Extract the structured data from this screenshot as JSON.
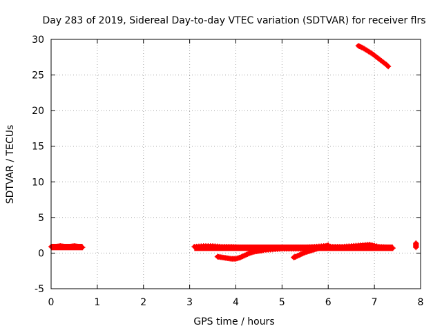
{
  "chart_data": {
    "type": "scatter",
    "title": "Day 283 of 2019, Sidereal Day-to-day VTEC variation (SDTVAR) for receiver flrs",
    "xlabel": "GPS time / hours",
    "ylabel": "SDTVAR / TECUs",
    "xlim": [
      0,
      8
    ],
    "ylim": [
      -5,
      30
    ],
    "x_ticks": [
      "0",
      "1",
      "2",
      "3",
      "4",
      "5",
      "6",
      "7",
      "8"
    ],
    "y_ticks": [
      "-5",
      "0",
      "5",
      "10",
      "15",
      "20",
      "25",
      "30"
    ],
    "grid": true,
    "marker": "plus",
    "color": "#ff0000",
    "segments": [
      {
        "x": [
          0.0,
          0.1,
          0.2,
          0.3,
          0.4,
          0.5,
          0.6,
          0.68
        ],
        "y": [
          0.9,
          0.9,
          1.0,
          0.9,
          0.9,
          1.0,
          0.9,
          0.8
        ],
        "band": [
          0.4,
          1.3
        ]
      },
      {
        "x": [
          3.1,
          3.3,
          3.5,
          3.7,
          3.9,
          4.1,
          4.3,
          4.5,
          4.7,
          4.9,
          5.1,
          5.3,
          5.5,
          5.7,
          5.9,
          6.1,
          6.3,
          6.5,
          6.7,
          6.9,
          7.1,
          7.3,
          7.4
        ],
        "y": [
          0.9,
          1.0,
          1.0,
          0.9,
          0.9,
          0.8,
          0.8,
          0.7,
          0.7,
          0.7,
          0.8,
          0.8,
          0.8,
          0.9,
          1.0,
          0.9,
          0.9,
          1.0,
          1.1,
          1.2,
          0.9,
          0.8,
          0.7
        ],
        "band": [
          0.3,
          1.2
        ]
      },
      {
        "x": [
          3.6,
          3.7,
          3.8,
          3.9,
          4.0,
          4.1,
          4.2,
          4.3,
          4.4,
          4.5,
          4.6,
          4.8,
          5.0,
          5.2,
          5.4
        ],
        "y": [
          -0.5,
          -0.6,
          -0.7,
          -0.8,
          -0.8,
          -0.6,
          -0.3,
          0.0,
          0.2,
          0.3,
          0.4,
          0.5,
          0.6,
          0.6,
          0.6
        ]
      },
      {
        "x": [
          5.25,
          5.3,
          5.4,
          5.5,
          5.6,
          5.7,
          5.8,
          5.9,
          6.0
        ],
        "y": [
          -0.6,
          -0.5,
          -0.2,
          0.1,
          0.3,
          0.5,
          0.7,
          0.9,
          1.1
        ]
      },
      {
        "x": [
          6.65,
          6.75,
          6.85,
          6.95,
          7.05,
          7.15,
          7.25,
          7.3
        ],
        "y": [
          29.1,
          28.8,
          28.4,
          28.0,
          27.5,
          27.0,
          26.5,
          26.2
        ]
      },
      {
        "x": [
          7.9,
          7.9,
          7.9
        ],
        "y": [
          0.8,
          1.1,
          1.4
        ]
      }
    ]
  }
}
